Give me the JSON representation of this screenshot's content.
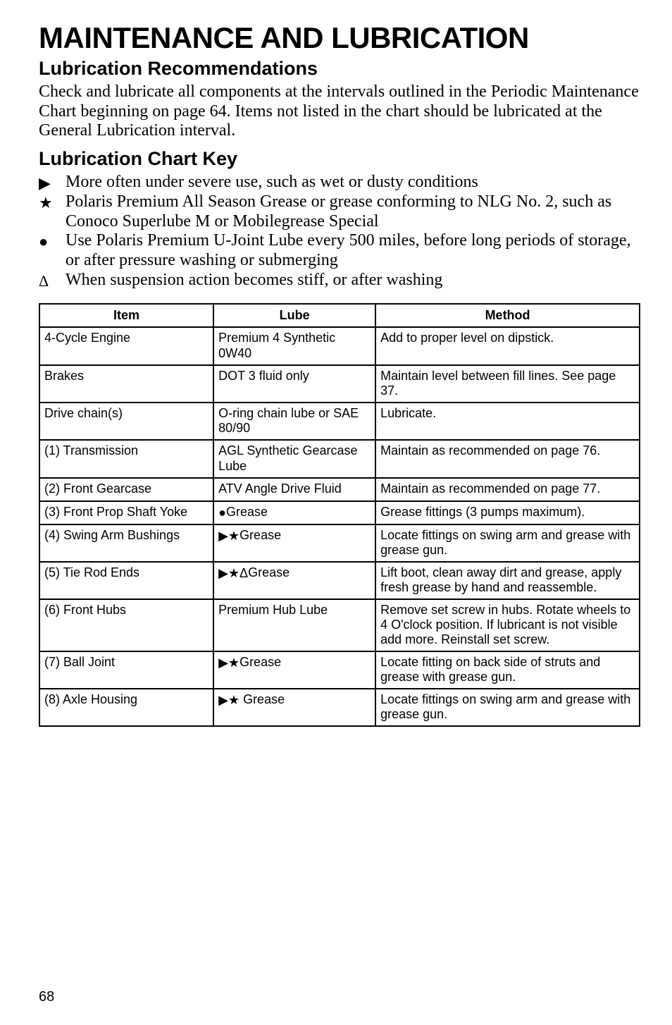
{
  "main_title": "MAINTENANCE AND LUBRICATION",
  "section_title": "Lubrication Recommendations",
  "intro_para": "Check and lubricate all components at the intervals outlined in the Periodic Maintenance Chart beginning on page 64.  Items not listed in the chart should be lubricated at the General Lubrication interval.",
  "key_title": "Lubrication Chart Key",
  "key_items": {
    "k0": {
      "icon": "▶",
      "text": "More often under severe use, such as wet or dusty conditions"
    },
    "k1": {
      "icon": "★",
      "text": "Polaris Premium All Season Grease or grease conforming to NLG No. 2, such as Conoco Superlube M or Mobilegrease Special"
    },
    "k2": {
      "icon": "●",
      "text": "Use Polaris Premium U-Joint Lube every 500 miles, before long periods of storage, or after pressure washing or submerging"
    },
    "k3": {
      "icon": "Δ",
      "text": "When suspension action becomes stiff, or after washing"
    }
  },
  "table": {
    "headers": {
      "h0": "Item",
      "h1": "Lube",
      "h2": "Method"
    },
    "rows": {
      "r0": {
        "item": "4-Cycle Engine",
        "lube_sym": "",
        "lube": "Premium 4 Synthetic 0W40",
        "method": "Add to proper level on dipstick."
      },
      "r1": {
        "item": "Brakes",
        "lube_sym": "",
        "lube": "DOT 3 fluid only",
        "method": "Maintain level between fill lines. See page 37."
      },
      "r2": {
        "item": "Drive chain(s)",
        "lube_sym": "",
        "lube": "O-ring chain lube or SAE 80/90",
        "method": "Lubricate."
      },
      "r3": {
        "item": "(1) Transmission",
        "lube_sym": "",
        "lube": "AGL Synthetic Gearcase Lube",
        "method": "Maintain as recommended on page 76."
      },
      "r4": {
        "item": "(2) Front Gearcase",
        "lube_sym": "",
        "lube": "ATV Angle Drive Fluid",
        "method": "Maintain as recommended on page 77."
      },
      "r5": {
        "item": "(3) Front Prop Shaft Yoke",
        "lube_sym": "●",
        "lube": "Grease",
        "method": "Grease fittings (3 pumps maximum)."
      },
      "r6": {
        "item": "(4) Swing Arm Bushings",
        "lube_sym": "▶★",
        "lube": "Grease",
        "method": "Locate fittings on swing arm and grease with grease gun."
      },
      "r7": {
        "item": "(5) Tie Rod Ends",
        "lube_sym": "▶★Δ",
        "lube": "Grease",
        "method": "Lift boot, clean away dirt and grease, apply fresh grease by hand and reassemble."
      },
      "r8": {
        "item": "(6) Front Hubs",
        "lube_sym": "",
        "lube": "Premium Hub Lube",
        "method": "Remove set screw in hubs.  Rotate wheels to 4 O'clock position.  If lubricant is not visible add more. Reinstall set screw."
      },
      "r9": {
        "item": "(7) Ball Joint",
        "lube_sym": "▶★",
        "lube": "Grease",
        "method": "Locate fitting on back side of struts and grease with grease gun."
      },
      "r10": {
        "item": "(8) Axle Housing",
        "lube_sym": "▶★",
        "lube": "   Grease",
        "method": "Locate fittings on swing arm and grease with grease gun."
      }
    }
  },
  "page_number": "68"
}
